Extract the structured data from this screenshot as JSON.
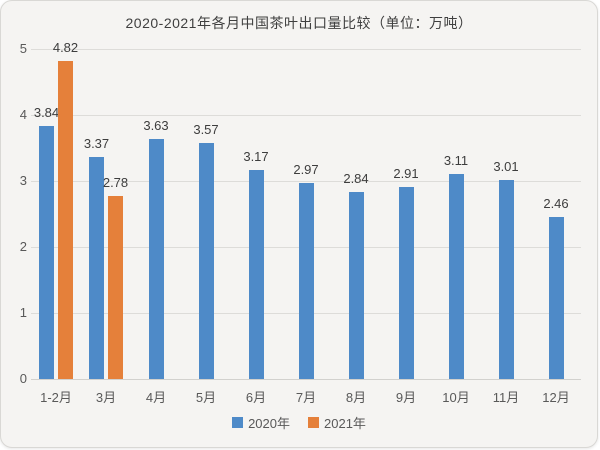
{
  "chart_data": {
    "type": "bar",
    "title": "2020-2021年各月中国茶叶出口量比较（单位：万吨）",
    "categories": [
      "1-2月",
      "3月",
      "4月",
      "5月",
      "6月",
      "7月",
      "8月",
      "9月",
      "10月",
      "11月",
      "12月"
    ],
    "series": [
      {
        "name": "2020年",
        "color": "#4e8ac8",
        "values": [
          3.84,
          3.37,
          3.63,
          3.57,
          3.17,
          2.97,
          2.84,
          2.91,
          3.11,
          3.01,
          2.46
        ]
      },
      {
        "name": "2021年",
        "color": "#e5803a",
        "values": [
          4.82,
          2.78,
          null,
          null,
          null,
          null,
          null,
          null,
          null,
          null,
          null
        ]
      }
    ],
    "ylim": [
      0,
      5
    ],
    "yticks": [
      0,
      1,
      2,
      3,
      4,
      5
    ],
    "grid": true,
    "legend_position": "bottom",
    "colors": {
      "background": "#f5f4f2",
      "gridline": "#dddcd9",
      "text": "#595959"
    }
  }
}
